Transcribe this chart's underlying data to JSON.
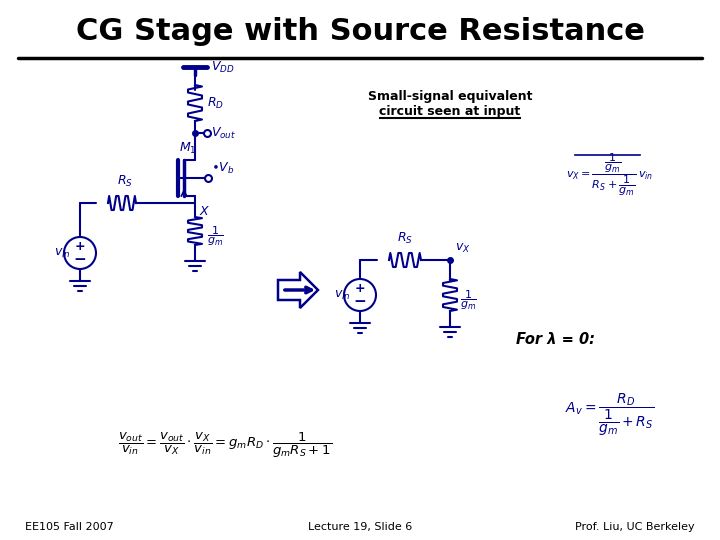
{
  "title": "CG Stage with Source Resistance",
  "title_color": "#000000",
  "title_fontsize": 22,
  "bg_color": "#ffffff",
  "circuit_color": "#00008B",
  "text_color": "#000000",
  "footer_left": "EE105 Fall 2007",
  "footer_center": "Lecture 19, Slide 6",
  "footer_right": "Prof. Liu, UC Berkeley",
  "small_signal_label": "Small-signal equivalent\ncircuit seen at input",
  "for_lambda": "For λ = 0:"
}
